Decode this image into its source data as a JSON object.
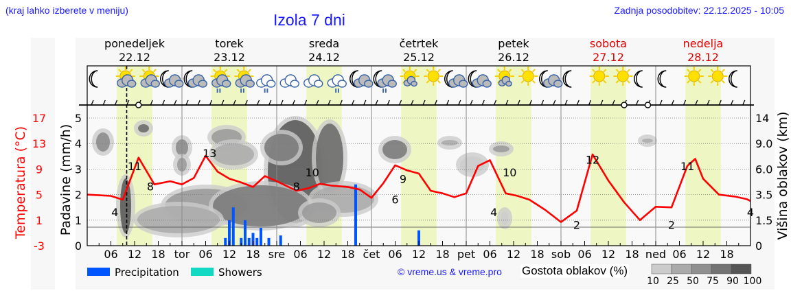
{
  "header": {
    "menu_hint": "(kraj lahko izberete v meniju)",
    "title": "Izola 7 dni",
    "last_update": "Zadnja posodobitev: 22.12.2025 - 10:05"
  },
  "days": [
    {
      "name": "ponedeljek",
      "date": "22.12",
      "weekend": false,
      "abbr": ""
    },
    {
      "name": "torek",
      "date": "23.12",
      "weekend": false,
      "abbr": "tor"
    },
    {
      "name": "sreda",
      "date": "24.12",
      "weekend": false,
      "abbr": "sre"
    },
    {
      "name": "četrtek",
      "date": "25.12",
      "weekend": false,
      "abbr": "čet"
    },
    {
      "name": "petek",
      "date": "26.12",
      "weekend": false,
      "abbr": "pet"
    },
    {
      "name": "sobota",
      "date": "27.12",
      "weekend": true,
      "abbr": "sob"
    },
    {
      "name": "nedelja",
      "date": "28.12",
      "weekend": true,
      "abbr": "ned"
    }
  ],
  "weather_icons": [
    "moon",
    "sun-cloud",
    "sun-cloud",
    "moon-cloud",
    "moon-cloud",
    "sun-cloud-rain",
    "sun-cloud-rain",
    "cloud-rain",
    "cloud",
    "cloud",
    "cloud-rain",
    "moon-cloud",
    "moon-cloud-rain",
    "sun-small-cloud",
    "sun",
    "moon-cloud",
    "moon-cloud",
    "sun-small-cloud",
    "sun",
    "moon-cloud",
    "moon",
    "sun",
    "sun",
    "moon",
    "moon",
    "sun",
    "sun",
    "moon"
  ],
  "legend": {
    "precipitation": "Precipitation",
    "showers": "Showers",
    "precip_color": "#0055ff",
    "showers_color": "#11d9c4",
    "credit": "© vreme.us & vreme.pro",
    "density_title": "Gostota oblakov (%)",
    "density_ticks": [
      "10",
      "25",
      "50",
      "75",
      "90",
      "100"
    ],
    "density_colors": [
      "#cccccc",
      "#aaaaaa",
      "#909090",
      "#737373",
      "#555555"
    ]
  },
  "chart_data": {
    "type": "line",
    "title": "Izola 7 dni",
    "xlabel": "",
    "ylabel_left_temp": "Temperatura (°C)",
    "ylabel_left_precip": "Padavine (mm/h)",
    "ylabel_right": "Višina oblakov (km)",
    "temp_ticks": [
      "17",
      "13",
      "9",
      "5",
      "1",
      "-3"
    ],
    "precip_ticks": [
      "5",
      "4",
      "3",
      "2",
      "1",
      "0"
    ],
    "cloud_height_ticks": [
      "14",
      "9.0",
      "6.0",
      "3.5",
      "1.5",
      "0"
    ],
    "x_ticks": [
      "06",
      "12",
      "18",
      "tor",
      "06",
      "12",
      "18",
      "sre",
      "06",
      "12",
      "18",
      "čet",
      "06",
      "12",
      "18",
      "pet",
      "06",
      "12",
      "18",
      "sob",
      "06",
      "12",
      "18",
      "ned",
      "06",
      "12",
      "18"
    ],
    "temp_ylim": [
      -3,
      17
    ],
    "precip_ylim": [
      0,
      5
    ],
    "now_marker_hour": 10,
    "temperature_series": {
      "name": "Temperatura",
      "color": "#ff0000",
      "hours": [
        0,
        6,
        9,
        13,
        17,
        21,
        24,
        27,
        30,
        33,
        36,
        39,
        42,
        45,
        48,
        53,
        56,
        59,
        62,
        66,
        69,
        72,
        75,
        78,
        81,
        84,
        87,
        90,
        93,
        96,
        99,
        102,
        106,
        109,
        112,
        116,
        120,
        124,
        128,
        132,
        136,
        140,
        144,
        148,
        152,
        154,
        156,
        160,
        164,
        167,
        168
      ],
      "values": [
        5,
        4.8,
        4.2,
        10.8,
        6.6,
        7.1,
        6.6,
        7.6,
        11.1,
        8.6,
        7.5,
        6.9,
        6.2,
        7.9,
        7.1,
        5.6,
        6.0,
        6.7,
        6.4,
        6.2,
        5.8,
        4.5,
        6.8,
        9.6,
        8.8,
        8.3,
        5.6,
        5.2,
        4.6,
        5.2,
        9.5,
        10.4,
        5.2,
        4.8,
        4.2,
        2.6,
        0.7,
        2.5,
        11.3,
        7.2,
        3.8,
        1.0,
        3.1,
        3.0,
        9.5,
        10.6,
        7.5,
        5.0,
        4.7,
        4.3,
        4.0
      ]
    },
    "temperature_labels": [
      {
        "hour": 7,
        "value": "4"
      },
      {
        "hour": 12,
        "value": "11"
      },
      {
        "hour": 16,
        "value": "8"
      },
      {
        "hour": 31,
        "value": "13"
      },
      {
        "hour": 53,
        "value": "8"
      },
      {
        "hour": 57,
        "value": "10"
      },
      {
        "hour": 78,
        "value": "6"
      },
      {
        "hour": 80,
        "value": "9"
      },
      {
        "hour": 103,
        "value": "4"
      },
      {
        "hour": 107,
        "value": "10"
      },
      {
        "hour": 124,
        "value": "2"
      },
      {
        "hour": 128,
        "value": "12"
      },
      {
        "hour": 148,
        "value": "2"
      },
      {
        "hour": 152,
        "value": "11"
      },
      {
        "hour": 168,
        "value": "4"
      }
    ],
    "precipitation_series": {
      "name": "Precipitation",
      "color": "#0055ff",
      "hours": [
        35,
        36,
        37,
        39,
        40,
        41,
        42,
        43,
        44,
        46,
        49,
        68,
        84
      ],
      "values": [
        0.3,
        1.0,
        1.5,
        0.3,
        1.0,
        0.3,
        0.5,
        0.3,
        0.7,
        0.3,
        0.4,
        2.4,
        0.6
      ]
    },
    "showers_series": {
      "name": "Showers",
      "color": "#11d9c4",
      "values": []
    },
    "daylight_bands": [
      [
        7.5,
        16.5
      ],
      [
        31.5,
        40.5
      ],
      [
        55.5,
        64.5
      ],
      [
        79.5,
        88.5
      ],
      [
        103.5,
        112.5
      ],
      [
        127.5,
        136.5
      ],
      [
        151.5,
        160.5
      ]
    ]
  }
}
